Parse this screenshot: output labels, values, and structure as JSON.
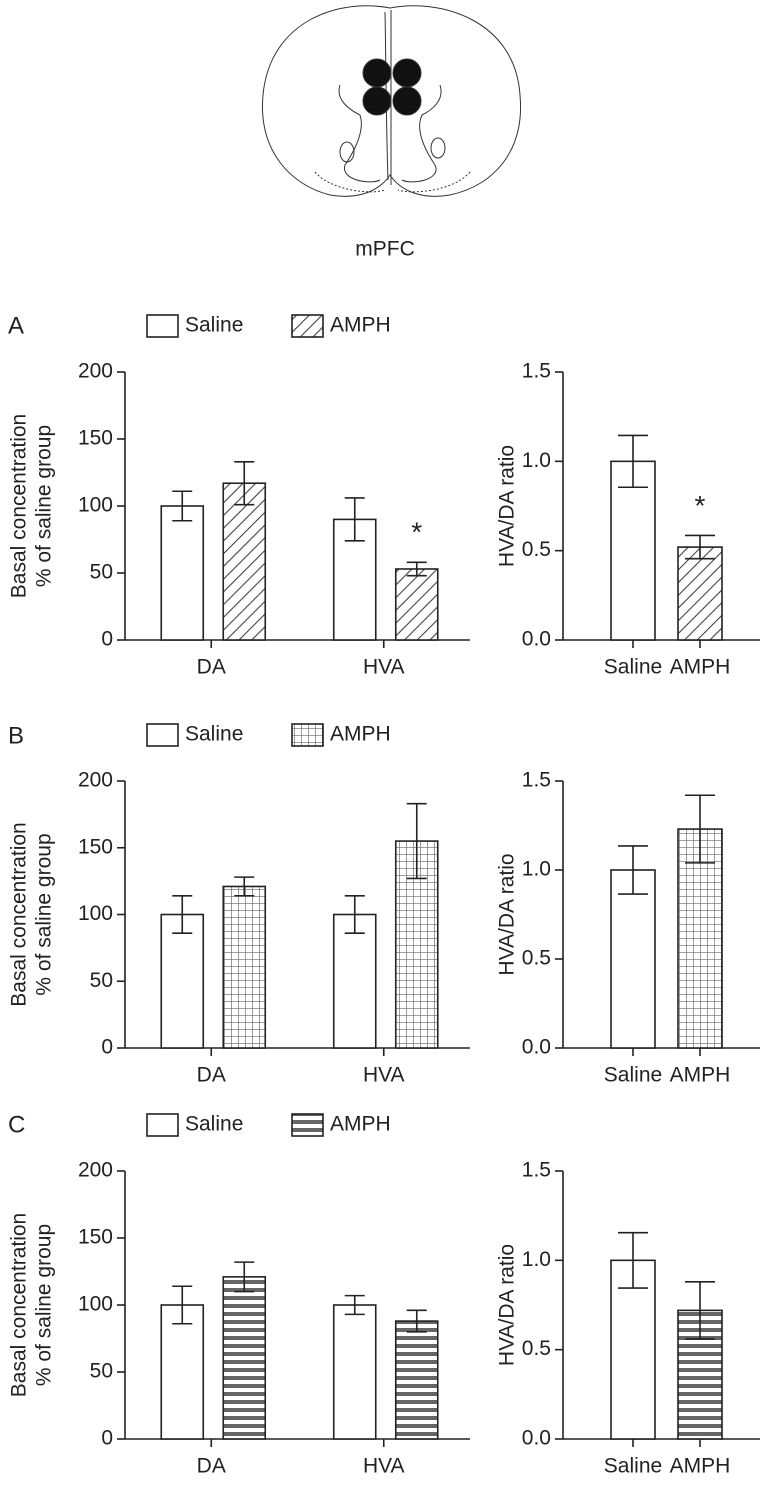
{
  "figure": {
    "region": "mPFC",
    "panels": [
      "A",
      "B",
      "C"
    ]
  },
  "chart_data": [
    {
      "type": "bar",
      "categories": [
        "DA",
        "HVA"
      ],
      "ylabel": [
        "Basal concentration",
        "% of saline group"
      ],
      "ylim": [
        0,
        200
      ],
      "yticks": [
        0,
        50,
        100,
        150,
        200
      ],
      "series": [
        {
          "name": "Saline",
          "pattern": "none",
          "values": [
            100,
            90
          ],
          "errors": [
            11,
            16
          ]
        },
        {
          "name": "AMPH",
          "pattern": "diagonal",
          "values": [
            117,
            53
          ],
          "errors": [
            16,
            5
          ],
          "labels": [
            null,
            "*"
          ]
        }
      ]
    },
    {
      "type": "bar",
      "categories": [
        "Saline",
        "AMPH"
      ],
      "ylabel": [
        "HVA/DA ratio"
      ],
      "ylim": [
        0,
        1.5
      ],
      "yticks": [
        {
          "value": 0,
          "label": "0.0"
        },
        {
          "value": 0.5,
          "label": "0.5"
        },
        {
          "value": 1,
          "label": "1.0"
        },
        {
          "value": 1.5,
          "label": "1.5"
        }
      ],
      "patterns": [
        "none",
        "diagonal"
      ],
      "values": [
        1.0,
        0.52
      ],
      "errors": [
        0.145,
        0.065
      ],
      "labels": [
        null,
        "*"
      ]
    },
    {
      "type": "bar",
      "categories": [
        "DA",
        "HVA"
      ],
      "ylabel": [
        "Basal concentration",
        "% of saline group"
      ],
      "ylim": [
        0,
        200
      ],
      "yticks": [
        0,
        50,
        100,
        150,
        200
      ],
      "series": [
        {
          "name": "Saline",
          "pattern": "none",
          "values": [
            100,
            100
          ],
          "errors": [
            14,
            14
          ]
        },
        {
          "name": "AMPH",
          "pattern": "grid",
          "values": [
            121,
            155
          ],
          "errors": [
            7,
            28
          ]
        }
      ]
    },
    {
      "type": "bar",
      "categories": [
        "Saline",
        "AMPH"
      ],
      "ylabel": [
        "HVA/DA ratio"
      ],
      "ylim": [
        0,
        1.5
      ],
      "yticks": [
        {
          "value": 0,
          "label": "0.0"
        },
        {
          "value": 0.5,
          "label": "0.5"
        },
        {
          "value": 1,
          "label": "1.0"
        },
        {
          "value": 1.5,
          "label": "1.5"
        }
      ],
      "patterns": [
        "none",
        "grid"
      ],
      "values": [
        1.0,
        1.23
      ],
      "errors": [
        0.135,
        0.19
      ]
    },
    {
      "type": "bar",
      "categories": [
        "DA",
        "HVA"
      ],
      "ylabel": [
        "Basal concentration",
        "% of saline group"
      ],
      "ylim": [
        0,
        200
      ],
      "yticks": [
        0,
        50,
        100,
        150,
        200
      ],
      "series": [
        {
          "name": "Saline",
          "pattern": "none",
          "values": [
            100,
            100
          ],
          "errors": [
            14,
            7
          ]
        },
        {
          "name": "AMPH",
          "pattern": "stripes",
          "values": [
            121,
            88
          ],
          "errors": [
            11,
            8
          ]
        }
      ]
    },
    {
      "type": "bar",
      "categories": [
        "Saline",
        "AMPH"
      ],
      "ylabel": [
        "HVA/DA ratio"
      ],
      "ylim": [
        0,
        1.5
      ],
      "yticks": [
        {
          "value": 0,
          "label": "0.0"
        },
        {
          "value": 0.5,
          "label": "0.5"
        },
        {
          "value": 1,
          "label": "1.0"
        },
        {
          "value": 1.5,
          "label": "1.5"
        }
      ],
      "patterns": [
        "none",
        "stripes"
      ],
      "values": [
        1.0,
        0.72
      ],
      "errors": [
        0.155,
        0.16
      ]
    }
  ]
}
